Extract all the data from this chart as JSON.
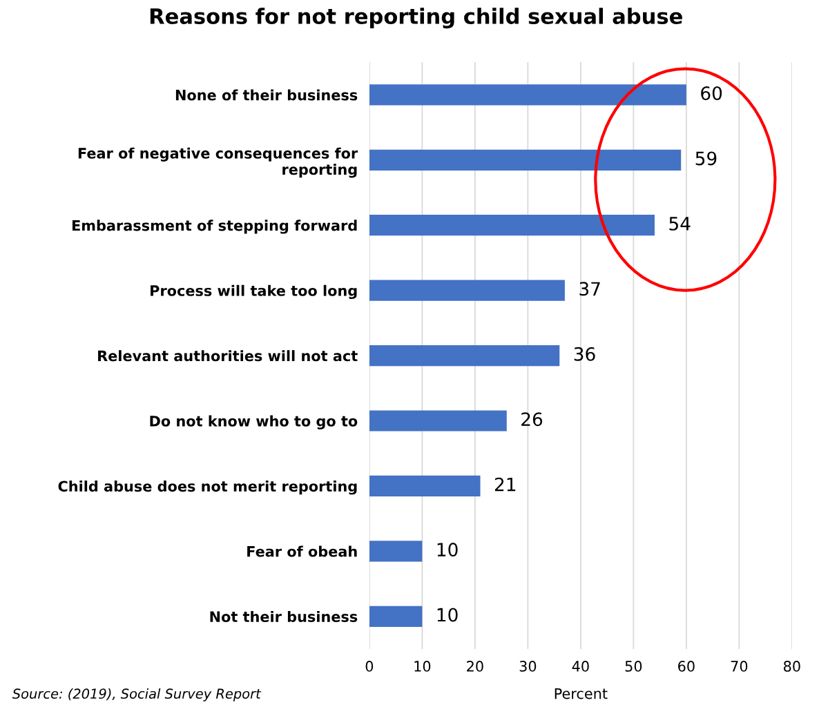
{
  "chart_data": {
    "type": "bar",
    "orientation": "horizontal",
    "title": "Reasons for not reporting child sexual abuse",
    "categories": [
      "None of their business",
      "Fear of negative consequences for\nreporting",
      "Embarassment of stepping forward",
      "Process will take too long",
      "Relevant authorities will not act",
      "Do not know who to go to",
      "Child abuse does not merit reporting",
      "Fear of obeah",
      "Not their business"
    ],
    "values": [
      60,
      59,
      54,
      37,
      36,
      26,
      21,
      10,
      10
    ],
    "color": "#4472c4",
    "xlim": [
      0,
      80
    ],
    "xticks": [
      0,
      10,
      20,
      30,
      40,
      50,
      60,
      70,
      80
    ],
    "xlabel": "Percent",
    "grid": "x",
    "data_labels": true,
    "annotations": [
      "Source: (2019), Social Survey Report"
    ]
  }
}
